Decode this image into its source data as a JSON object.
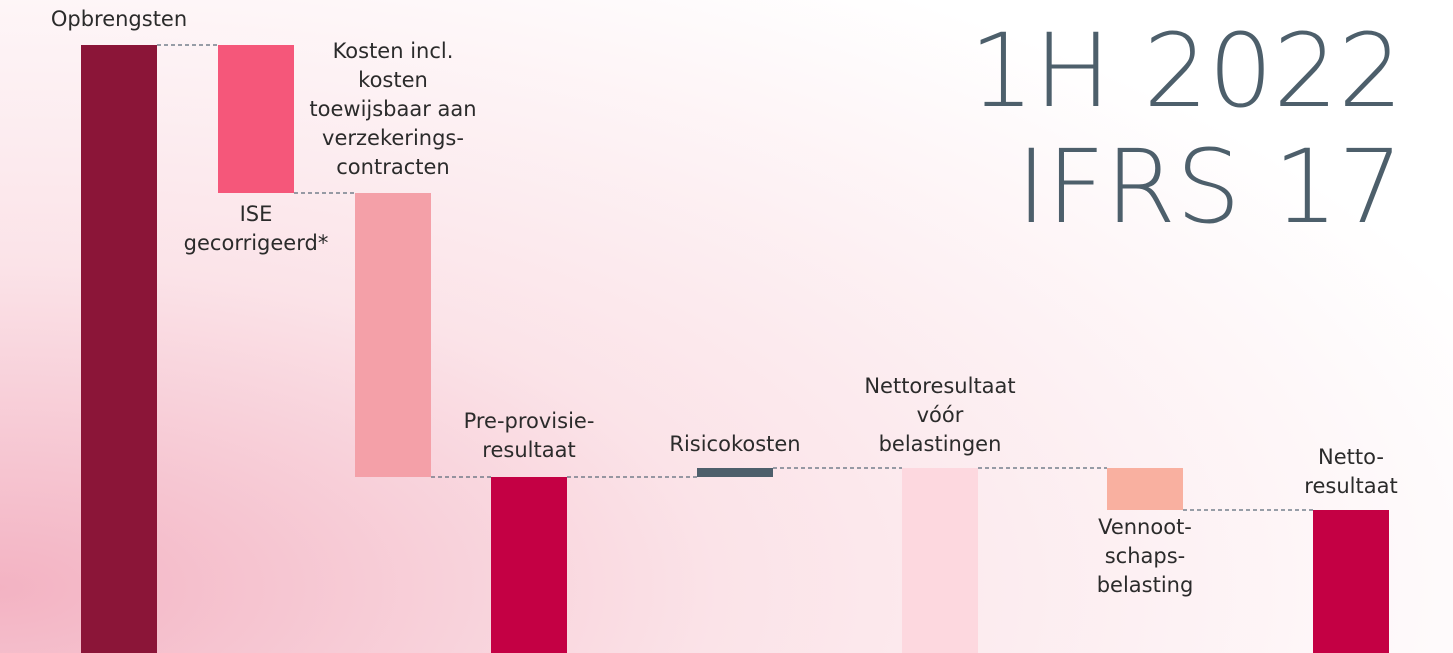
{
  "chart_data": {
    "type": "waterfall",
    "title": [
      "1H 2022",
      "IFRS 17"
    ],
    "categories": [
      [
        "Opbrengsten"
      ],
      [
        "ISE",
        "gecorrigeerd*"
      ],
      [
        "Kosten incl.",
        "kosten",
        "toewijsbaar aan",
        "verzekerings-",
        "contracten"
      ],
      [
        "Pre-provisie-",
        "resultaat"
      ],
      [
        "Risicokosten"
      ],
      [
        "Nettoresultaat",
        "vóór",
        "belastingen"
      ],
      [
        "Vennoot-",
        "schaps-",
        "belasting"
      ],
      [
        "Netto-",
        "resultaat"
      ]
    ],
    "values": [
      608,
      -148,
      -284,
      176,
      9,
      185,
      -42,
      143
    ],
    "measure": [
      "absolute",
      "relative",
      "relative",
      "absolute",
      "relative",
      "absolute",
      "relative",
      "absolute"
    ],
    "colors": [
      "#8b1538",
      "#f5577a",
      "#f4a0a8",
      "#c40044",
      "#4d5f6b",
      "#fdd8df",
      "#f9b0a0",
      "#c40044"
    ],
    "ylim": [
      0,
      608
    ]
  }
}
